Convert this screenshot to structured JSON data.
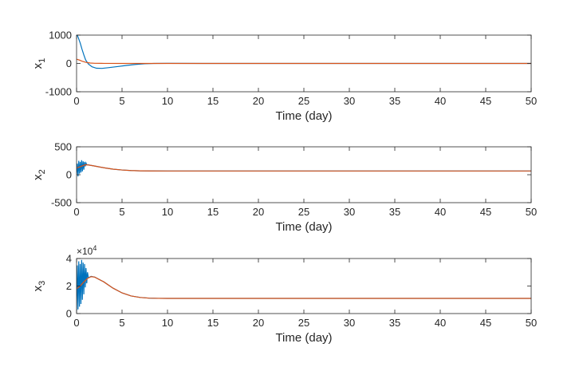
{
  "chart_data": [
    {
      "type": "line",
      "ylabel": {
        "base": "x",
        "sub": "1"
      },
      "xlabel": "Time (day)",
      "xlim": [
        0,
        50
      ],
      "ylim": [
        -1000,
        1000
      ],
      "xticks": [
        0,
        5,
        10,
        15,
        20,
        25,
        30,
        35,
        40,
        45,
        50
      ],
      "xtick_labels": [
        "0",
        "5",
        "10",
        "15",
        "20",
        "25",
        "30",
        "35",
        "40",
        "45",
        "50"
      ],
      "yticks": [
        -1000,
        0,
        1000
      ],
      "ytick_labels": [
        "-1000",
        "0",
        "1000"
      ],
      "grid": false,
      "series": [
        {
          "color": "#0072BD",
          "x": [
            0,
            0.1,
            0.2,
            0.4,
            0.6,
            0.8,
            1.0,
            1.3,
            1.7,
            2.2,
            2.8,
            3.5,
            4.5,
            5.5,
            6.5,
            7.5,
            8.5,
            10,
            15,
            20,
            30,
            40,
            50
          ],
          "y": [
            1000,
            980,
            900,
            720,
            500,
            300,
            120,
            -20,
            -120,
            -170,
            -175,
            -150,
            -110,
            -70,
            -35,
            -12,
            0,
            3,
            0,
            0,
            0,
            0,
            0
          ]
        },
        {
          "color": "#D95319",
          "x": [
            0,
            0.3,
            0.6,
            1.0,
            1.5,
            2.0,
            3.0,
            5.0,
            10,
            20,
            30,
            40,
            50
          ],
          "y": [
            150,
            120,
            80,
            40,
            15,
            5,
            2,
            0,
            0,
            0,
            0,
            0,
            0
          ]
        }
      ]
    },
    {
      "type": "line",
      "ylabel": {
        "base": "x",
        "sub": "2"
      },
      "xlabel": "Time (day)",
      "xlim": [
        0,
        50
      ],
      "ylim": [
        -500,
        500
      ],
      "xticks": [
        0,
        5,
        10,
        15,
        20,
        25,
        30,
        35,
        40,
        45,
        50
      ],
      "xtick_labels": [
        "0",
        "5",
        "10",
        "15",
        "20",
        "25",
        "30",
        "35",
        "40",
        "45",
        "50"
      ],
      "yticks": [
        -500,
        0,
        500
      ],
      "ytick_labels": [
        "-500",
        "0",
        "500"
      ],
      "grid": false,
      "series": [
        {
          "color": "#0072BD",
          "x": [
            0,
            0.08,
            0.16,
            0.24,
            0.32,
            0.4,
            0.48,
            0.56,
            0.64,
            0.72,
            0.8,
            0.88,
            0.96,
            1.04,
            1.12,
            1.2,
            1.5,
            2,
            3,
            4,
            5,
            6,
            7,
            8,
            10,
            15,
            20,
            30,
            40,
            50
          ],
          "y": [
            10,
            200,
            -30,
            250,
            20,
            230,
            40,
            260,
            60,
            240,
            90,
            230,
            150,
            210,
            175,
            180,
            170,
            155,
            125,
            100,
            85,
            75,
            70,
            68,
            67,
            67,
            67,
            67,
            67,
            67
          ]
        },
        {
          "color": "#D95319",
          "x": [
            0,
            0.5,
            1.0,
            1.5,
            2,
            3,
            4,
            5,
            6,
            7,
            8,
            10,
            15,
            20,
            30,
            40,
            50
          ],
          "y": [
            120,
            150,
            180,
            170,
            155,
            125,
            100,
            85,
            75,
            70,
            68,
            67,
            67,
            67,
            67,
            67,
            67
          ]
        }
      ]
    },
    {
      "type": "line",
      "ylabel": {
        "base": "x",
        "sub": "3"
      },
      "xlabel": "Time (day)",
      "xlim": [
        0,
        50
      ],
      "ylim": [
        0,
        40000
      ],
      "xticks": [
        0,
        5,
        10,
        15,
        20,
        25,
        30,
        35,
        40,
        45,
        50
      ],
      "xtick_labels": [
        "0",
        "5",
        "10",
        "15",
        "20",
        "25",
        "30",
        "35",
        "40",
        "45",
        "50"
      ],
      "yticks": [
        0,
        20000,
        40000
      ],
      "ytick_labels": [
        "0",
        "2",
        "4"
      ],
      "exponent": {
        "base": "×10",
        "power": "4"
      },
      "grid": false,
      "series": [
        {
          "color": "#0072BD",
          "x": [
            0,
            0.08,
            0.16,
            0.24,
            0.32,
            0.4,
            0.48,
            0.56,
            0.64,
            0.72,
            0.8,
            0.88,
            0.96,
            1.04,
            1.12,
            1.2,
            1.3,
            1.6,
            2,
            3,
            4,
            5,
            6,
            7,
            8,
            9,
            10,
            12,
            15,
            20,
            30,
            40,
            50
          ],
          "y": [
            2000,
            35000,
            3000,
            38000,
            5000,
            36000,
            7000,
            39000,
            10000,
            37000,
            14000,
            36000,
            19000,
            33000,
            22000,
            30000,
            26000,
            27000,
            26500,
            23000,
            18500,
            15000,
            12800,
            11700,
            11200,
            11050,
            11000,
            11000,
            11000,
            11000,
            11000,
            11000,
            11000
          ]
        },
        {
          "color": "#D95319",
          "x": [
            0,
            0.4,
            0.8,
            1.2,
            1.6,
            2,
            3,
            4,
            5,
            6,
            7,
            8,
            9,
            10,
            12,
            15,
            20,
            30,
            40,
            50
          ],
          "y": [
            18000,
            20000,
            23000,
            25500,
            26800,
            26500,
            23000,
            18500,
            15000,
            12800,
            11700,
            11200,
            11050,
            11000,
            11000,
            11000,
            11000,
            11000,
            11000,
            11000
          ]
        }
      ]
    }
  ]
}
